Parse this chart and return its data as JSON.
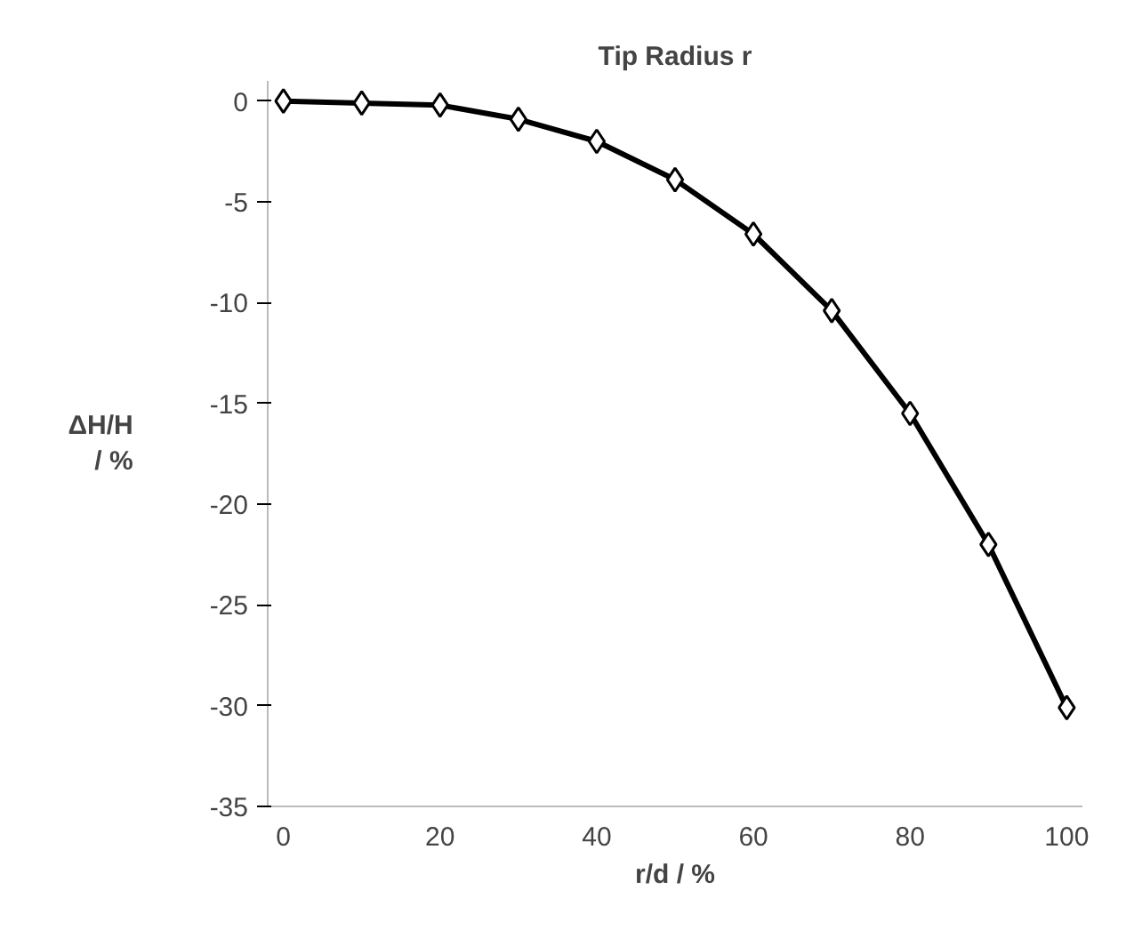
{
  "chart_data": {
    "type": "line",
    "title": "Tip Radius r",
    "xlabel": "r/d / %",
    "ylabel": "ΔH/H\n/ %",
    "x": [
      0,
      10,
      20,
      30,
      40,
      50,
      60,
      70,
      80,
      90,
      100
    ],
    "series": [
      {
        "color": "#000000",
        "values": [
          0,
          -0.1,
          -0.2,
          -0.9,
          -2.0,
          -3.9,
          -6.6,
          -10.4,
          -15.5,
          -22.0,
          -30.1
        ]
      }
    ],
    "xlim": [
      -2,
      102
    ],
    "xticks": [
      0,
      20,
      40,
      60,
      80,
      100
    ],
    "ylim": [
      -35,
      1
    ],
    "yticks": [
      0,
      -5,
      -10,
      -15,
      -20,
      -25,
      -30,
      -35
    ],
    "grid": false,
    "marker": "diamond",
    "line_style": "solid"
  }
}
